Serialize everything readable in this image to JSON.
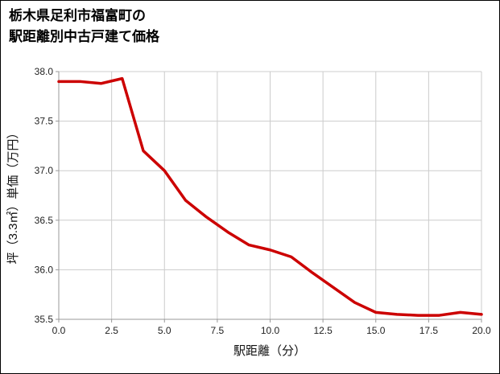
{
  "chart_data": {
    "type": "line",
    "title": "栃木県足利市福富町の駅距離別中古戸建て価格",
    "title_lines": [
      "栃木県足利市福富町の",
      "駅距離別中古戸建て価格"
    ],
    "xlabel": "駅距離（分）",
    "ylabel": "坪（3.3㎡）単価（万円）",
    "x": [
      0,
      1,
      2,
      3,
      4,
      5,
      6,
      7,
      8,
      9,
      10,
      11,
      12,
      13,
      14,
      15,
      16,
      17,
      18,
      19,
      20
    ],
    "y": [
      37.9,
      37.9,
      37.88,
      37.93,
      37.2,
      37.0,
      36.7,
      36.53,
      36.38,
      36.25,
      36.2,
      36.13,
      35.97,
      35.82,
      35.67,
      35.57,
      35.55,
      35.54,
      35.54,
      35.57,
      35.55
    ],
    "xlim": [
      0,
      20
    ],
    "ylim": [
      35.5,
      38.0
    ],
    "xticks": [
      0,
      2.5,
      5,
      7.5,
      10,
      12.5,
      15,
      17.5,
      20
    ],
    "xtick_labels": [
      "0.0",
      "2.5",
      "5.0",
      "7.5",
      "10.0",
      "12.5",
      "15.0",
      "17.5",
      "20.0"
    ],
    "yticks": [
      35.5,
      36.0,
      36.5,
      37.0,
      37.5,
      38.0
    ],
    "ytick_labels": [
      "35.5",
      "36.0",
      "36.5",
      "37.0",
      "37.5",
      "38.0"
    ],
    "grid": true,
    "legend_position": "none",
    "line_color": "#cc0000",
    "grid_color": "#cccccc",
    "axis_color": "#999999"
  }
}
